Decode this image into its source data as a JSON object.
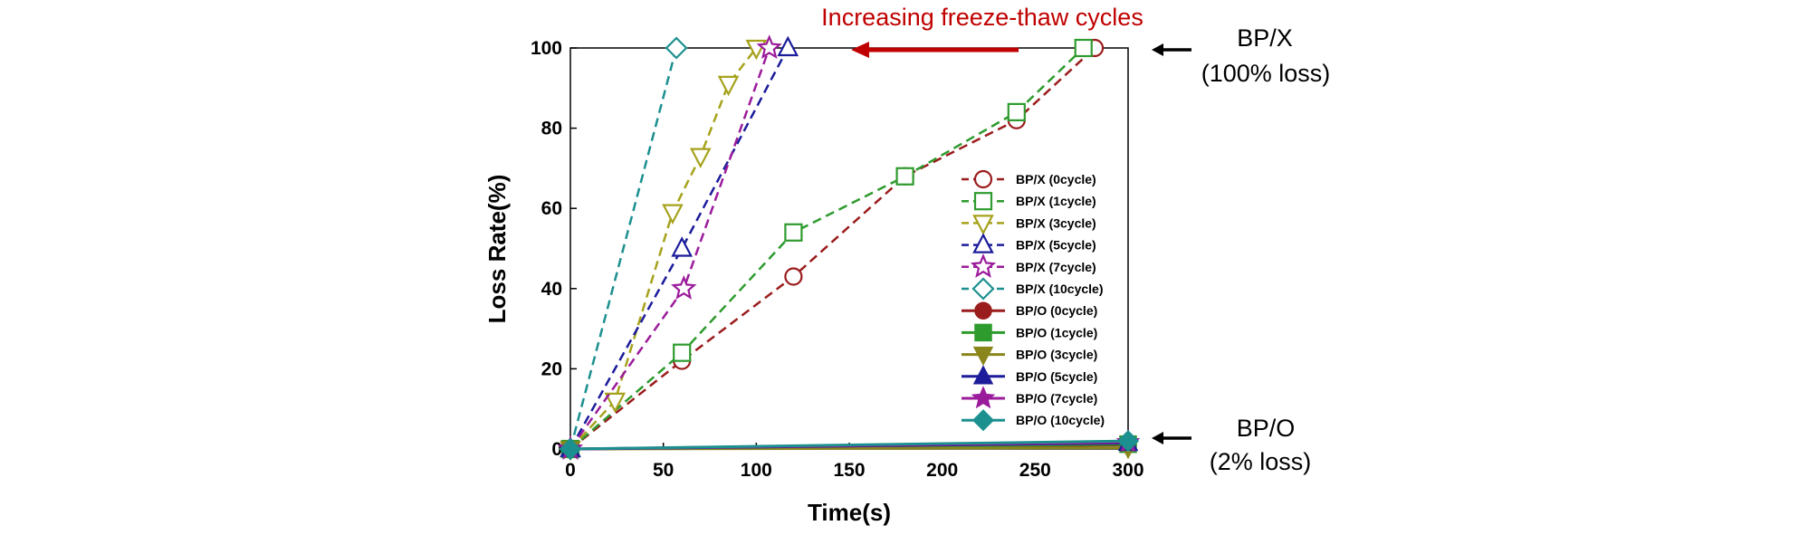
{
  "chart_data": {
    "type": "line",
    "title": "",
    "xlabel": "Time(s)",
    "ylabel": "Loss Rate(%)",
    "xlim": [
      0,
      300
    ],
    "ylim": [
      0,
      100
    ],
    "xticks": [
      0,
      50,
      100,
      150,
      200,
      250,
      300
    ],
    "yticks": [
      0,
      20,
      40,
      60,
      80,
      100
    ],
    "grid": false,
    "legend_position": "right-inside",
    "series": [
      {
        "name": "BP/X (0cycle)",
        "color": "#9b1c1c",
        "marker": "circle",
        "filled": false,
        "dashed": true,
        "x": [
          0,
          60,
          120,
          180,
          240,
          282
        ],
        "y": [
          0,
          22,
          43,
          68,
          82,
          100
        ]
      },
      {
        "name": "BP/X (1cycle)",
        "color": "#2e9b2e",
        "marker": "square",
        "filled": false,
        "dashed": true,
        "x": [
          0,
          60,
          120,
          180,
          240,
          276
        ],
        "y": [
          0,
          24,
          54,
          68,
          84,
          100
        ]
      },
      {
        "name": "BP/X (3cycle)",
        "color": "#a6a21c",
        "marker": "triangle-down",
        "filled": false,
        "dashed": true,
        "x": [
          0,
          24,
          55,
          70,
          85,
          100
        ],
        "y": [
          0,
          12,
          59,
          73,
          91,
          100
        ]
      },
      {
        "name": "BP/X (5cycle)",
        "color": "#1c1c9b",
        "marker": "triangle-up",
        "filled": false,
        "dashed": true,
        "x": [
          0,
          60,
          117
        ],
        "y": [
          0,
          50,
          100
        ]
      },
      {
        "name": "BP/X (7cycle)",
        "color": "#9b1c9b",
        "marker": "star",
        "filled": false,
        "dashed": true,
        "x": [
          0,
          61,
          107
        ],
        "y": [
          0,
          40,
          100
        ]
      },
      {
        "name": "BP/X (10cycle)",
        "color": "#1c8f8f",
        "marker": "diamond",
        "filled": false,
        "dashed": true,
        "x": [
          0,
          57
        ],
        "y": [
          0,
          100
        ]
      },
      {
        "name": "BP/O (0cycle)",
        "color": "#9b1c1c",
        "marker": "circle",
        "filled": true,
        "dashed": false,
        "x": [
          0,
          300
        ],
        "y": [
          0,
          1
        ]
      },
      {
        "name": "BP/O (1cycle)",
        "color": "#2e9b2e",
        "marker": "square",
        "filled": true,
        "dashed": false,
        "x": [
          0,
          300
        ],
        "y": [
          0,
          1.2
        ]
      },
      {
        "name": "BP/O (3cycle)",
        "color": "#8a861c",
        "marker": "triangle-down",
        "filled": true,
        "dashed": false,
        "x": [
          0,
          300
        ],
        "y": [
          0,
          0.3
        ]
      },
      {
        "name": "BP/O (5cycle)",
        "color": "#1c1c9b",
        "marker": "triangle-up",
        "filled": true,
        "dashed": false,
        "x": [
          0,
          300
        ],
        "y": [
          0,
          1.5
        ]
      },
      {
        "name": "BP/O (7cycle)",
        "color": "#9b1c9b",
        "marker": "star",
        "filled": true,
        "dashed": false,
        "x": [
          0,
          300
        ],
        "y": [
          0,
          1.7
        ]
      },
      {
        "name": "BP/O (10cycle)",
        "color": "#1c8f8f",
        "marker": "diamond",
        "filled": true,
        "dashed": false,
        "x": [
          0,
          300
        ],
        "y": [
          0,
          2
        ]
      }
    ],
    "annotations": {
      "arrow_label": "Increasing freeze-thaw cycles",
      "bpx_line1": "BP/X",
      "bpx_line2": "(100% loss)",
      "bpo_line1": "BP/O",
      "bpo_line2": "(2% loss)"
    }
  }
}
